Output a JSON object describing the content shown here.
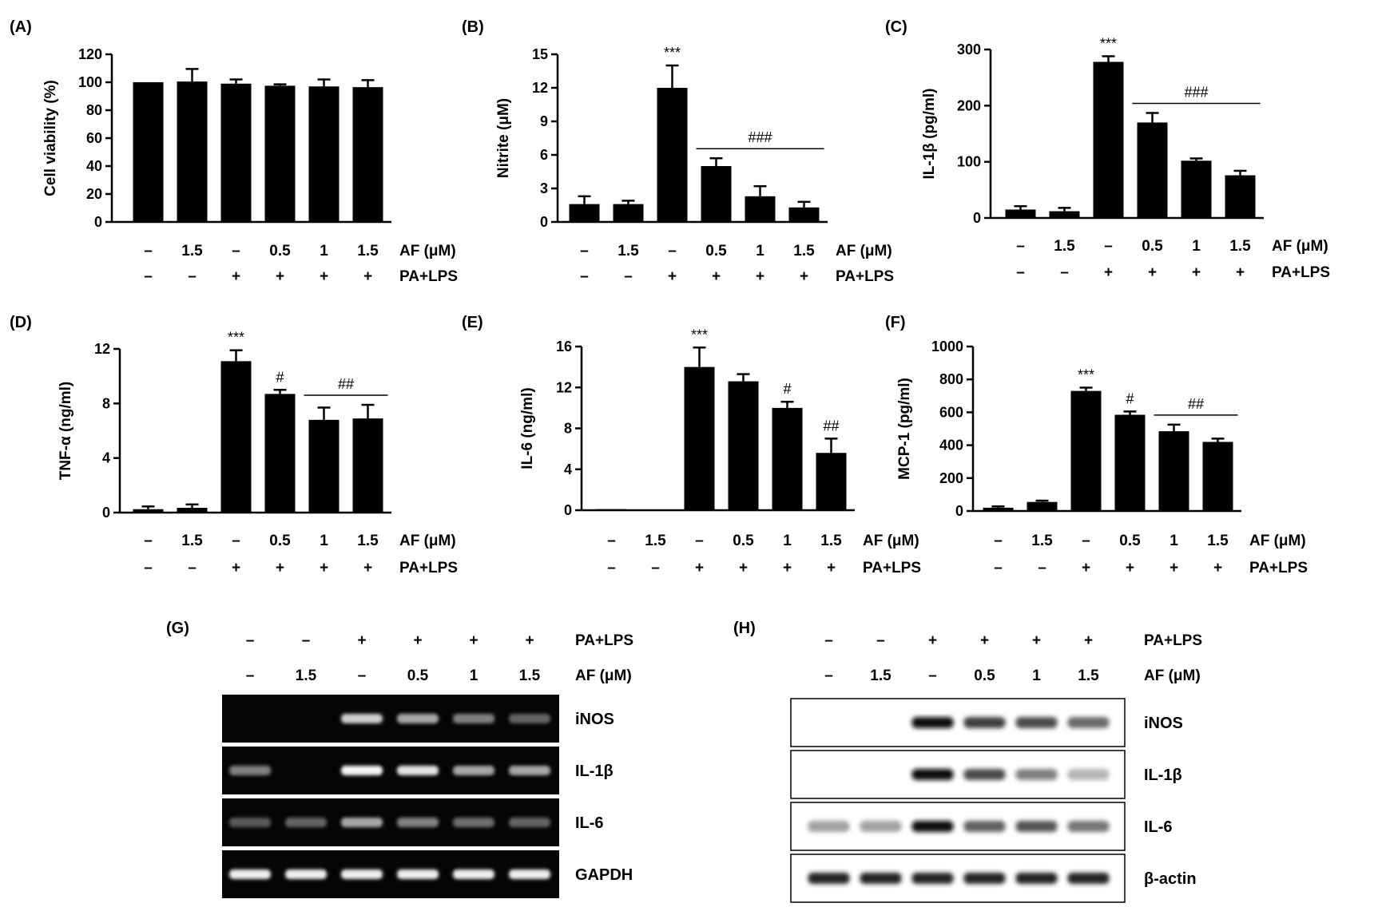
{
  "conditions": {
    "af_label": "AF (μM)",
    "pa_label": "PA+LPS",
    "af_values": [
      "–",
      "1.5",
      "–",
      "0.5",
      "1",
      "1.5"
    ],
    "pa_values": [
      "–",
      "–",
      "+",
      "+",
      "+",
      "+"
    ]
  },
  "chart_data": [
    {
      "panel": "(A)",
      "type": "bar",
      "ylabel": "Cell viability (%)",
      "ylim": [
        0,
        120
      ],
      "yticks": [
        0,
        20,
        40,
        60,
        80,
        100,
        120
      ],
      "values": [
        100,
        100.5,
        99,
        97.5,
        97,
        96.5
      ],
      "errors": [
        0,
        9,
        3,
        1,
        5,
        5
      ],
      "annotations": []
    },
    {
      "panel": "(B)",
      "type": "bar",
      "ylabel": "Nitrite (μM)",
      "ylim": [
        0,
        15
      ],
      "yticks": [
        0,
        3,
        6,
        9,
        12,
        15
      ],
      "values": [
        1.6,
        1.6,
        12,
        5,
        2.3,
        1.3
      ],
      "errors": [
        0.7,
        0.3,
        2,
        0.7,
        0.9,
        0.5
      ],
      "annotations": [
        {
          "text": "***",
          "bar": 2
        },
        {
          "text": "###",
          "from": 3,
          "to": 5
        }
      ]
    },
    {
      "panel": "(C)",
      "type": "bar",
      "ylabel": "IL-1β (pg/ml)",
      "ylim": [
        0,
        300
      ],
      "yticks": [
        0,
        100,
        200,
        300
      ],
      "values": [
        15,
        12,
        278,
        170,
        102,
        76
      ],
      "errors": [
        6,
        6,
        10,
        17,
        4,
        8
      ],
      "annotations": [
        {
          "text": "***",
          "bar": 2
        },
        {
          "text": "###",
          "from": 3,
          "to": 5
        }
      ]
    },
    {
      "panel": "(D)",
      "type": "bar",
      "ylabel": "TNF-α (ng/ml)",
      "ylim": [
        0,
        12
      ],
      "yticks": [
        0,
        4,
        8,
        12
      ],
      "values": [
        0.25,
        0.35,
        11.1,
        8.7,
        6.8,
        6.9
      ],
      "errors": [
        0.2,
        0.25,
        0.8,
        0.3,
        0.9,
        1
      ],
      "annotations": [
        {
          "text": "***",
          "bar": 2
        },
        {
          "text": "#",
          "bar": 3
        },
        {
          "text": "##",
          "from": 4,
          "to": 5
        }
      ]
    },
    {
      "panel": "(E)",
      "type": "bar",
      "ylabel": "IL-6 (ng/ml)",
      "ylim": [
        0,
        16
      ],
      "yticks": [
        0,
        4,
        8,
        12,
        16
      ],
      "values": [
        0.1,
        0.05,
        14,
        12.6,
        10,
        5.6
      ],
      "errors": [
        0,
        0,
        1.9,
        0.7,
        0.6,
        1.4
      ],
      "annotations": [
        {
          "text": "***",
          "bar": 2
        },
        {
          "text": "#",
          "bar": 4
        },
        {
          "text": "##",
          "bar": 5
        }
      ]
    },
    {
      "panel": "(F)",
      "type": "bar",
      "ylabel": "MCP-1 (pg/ml)",
      "ylim": [
        0,
        1000
      ],
      "yticks": [
        0,
        200,
        400,
        600,
        800,
        1000
      ],
      "values": [
        20,
        55,
        730,
        585,
        485,
        420
      ],
      "errors": [
        8,
        8,
        20,
        20,
        40,
        20
      ],
      "annotations": [
        {
          "text": "***",
          "bar": 2
        },
        {
          "text": "#",
          "bar": 3
        },
        {
          "text": "##",
          "from": 4,
          "to": 5
        }
      ]
    }
  ],
  "blots": [
    {
      "panel": "(G)",
      "style": "gel",
      "rows": [
        {
          "label": "iNOS",
          "intensity": [
            0,
            0,
            0.75,
            0.55,
            0.35,
            0.2
          ]
        },
        {
          "label": "IL-1β",
          "intensity": [
            0.35,
            0,
            0.95,
            0.85,
            0.55,
            0.55
          ]
        },
        {
          "label": "IL-6",
          "intensity": [
            0.15,
            0.2,
            0.55,
            0.35,
            0.25,
            0.2
          ]
        },
        {
          "label": "GAPDH",
          "intensity": [
            0.9,
            0.9,
            0.9,
            0.9,
            0.9,
            0.9
          ]
        }
      ]
    },
    {
      "panel": "(H)",
      "style": "western",
      "rows": [
        {
          "label": "iNOS",
          "intensity": [
            0,
            0,
            1,
            0.75,
            0.7,
            0.55
          ]
        },
        {
          "label": "IL-1β",
          "intensity": [
            0,
            0,
            1,
            0.7,
            0.45,
            0.2
          ]
        },
        {
          "label": "IL-6",
          "intensity": [
            0.3,
            0.3,
            1,
            0.6,
            0.65,
            0.5
          ]
        },
        {
          "label": "β-actin",
          "intensity": [
            0.9,
            0.9,
            0.9,
            0.9,
            0.9,
            0.9
          ]
        }
      ]
    }
  ]
}
